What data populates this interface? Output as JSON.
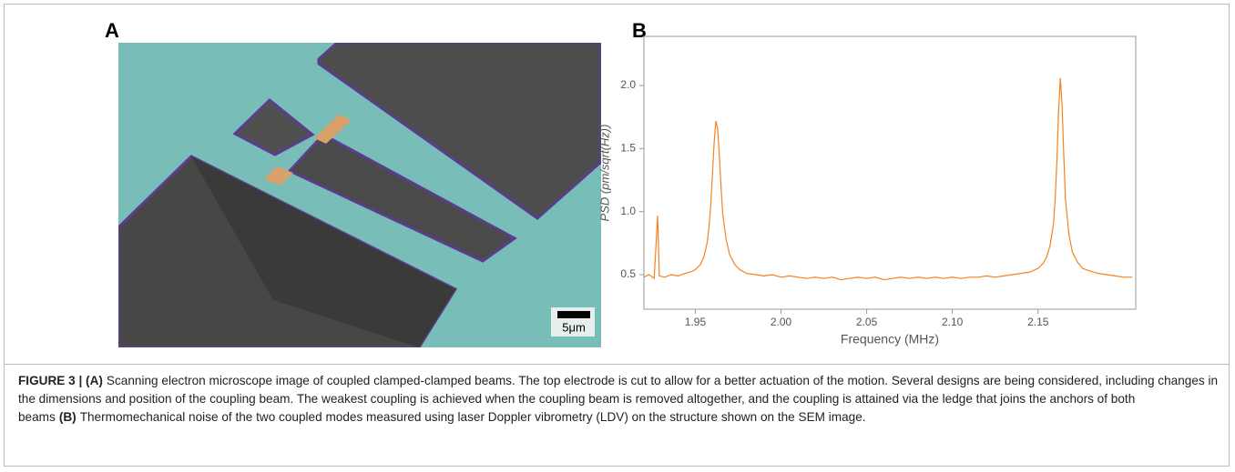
{
  "panel_labels": [
    "A",
    "B"
  ],
  "scale_bar": "5μm",
  "chart_data": {
    "type": "line",
    "xlabel": "Frequency (MHz)",
    "ylabel": "PSD (pm/sqrt(Hz))",
    "xlim": [
      1.92,
      2.207
    ],
    "ylim": [
      0.226,
      2.39
    ],
    "xticks": [
      1.95,
      {
        "value": 2,
        "label": "2.00"
      },
      2.05,
      {
        "value": 2.1,
        "label": "2.10"
      },
      2.15
    ],
    "yticks": [
      0.5,
      {
        "value": 1,
        "label": "1.0"
      },
      1.5,
      {
        "value": 2,
        "label": "2.0"
      }
    ],
    "x": [
      1.92,
      1.923,
      1.926,
      1.928,
      1.929,
      1.932,
      1.936,
      1.94,
      1.944,
      1.947,
      1.95,
      1.953,
      1.955,
      1.957,
      1.958,
      1.959,
      1.96,
      1.961,
      1.962,
      1.963,
      1.964,
      1.965,
      1.966,
      1.968,
      1.97,
      1.973,
      1.976,
      1.98,
      1.985,
      1.99,
      1.995,
      2.0,
      2.005,
      2.01,
      2.015,
      2.02,
      2.025,
      2.03,
      2.035,
      2.04,
      2.045,
      2.05,
      2.055,
      2.06,
      2.065,
      2.07,
      2.075,
      2.08,
      2.085,
      2.09,
      2.095,
      2.1,
      2.105,
      2.11,
      2.115,
      2.12,
      2.125,
      2.13,
      2.135,
      2.14,
      2.145,
      2.15,
      2.153,
      2.155,
      2.157,
      2.159,
      2.16,
      2.161,
      2.162,
      2.163,
      2.164,
      2.165,
      2.166,
      2.168,
      2.17,
      2.173,
      2.176,
      2.18,
      2.185,
      2.19,
      2.195,
      2.2,
      2.205
    ],
    "series": [
      {
        "color": "#f5821f",
        "values": [
          0.48,
          0.5,
          0.47,
          0.97,
          0.49,
          0.48,
          0.5,
          0.49,
          0.51,
          0.52,
          0.54,
          0.58,
          0.64,
          0.76,
          0.88,
          1.05,
          1.3,
          1.55,
          1.72,
          1.66,
          1.45,
          1.2,
          0.98,
          0.78,
          0.66,
          0.58,
          0.54,
          0.51,
          0.5,
          0.49,
          0.5,
          0.48,
          0.49,
          0.48,
          0.47,
          0.48,
          0.47,
          0.48,
          0.46,
          0.47,
          0.48,
          0.47,
          0.48,
          0.46,
          0.47,
          0.48,
          0.47,
          0.48,
          0.47,
          0.48,
          0.47,
          0.48,
          0.47,
          0.48,
          0.48,
          0.49,
          0.48,
          0.49,
          0.5,
          0.51,
          0.52,
          0.55,
          0.59,
          0.64,
          0.73,
          0.9,
          1.1,
          1.4,
          1.8,
          2.06,
          1.85,
          1.45,
          1.1,
          0.82,
          0.68,
          0.6,
          0.55,
          0.53,
          0.51,
          0.5,
          0.49,
          0.48,
          0.48
        ]
      }
    ]
  },
  "caption": {
    "label": "FIGURE 3 | (A)",
    "a_text": "Scanning electron microscope image of coupled clamped-clamped beams. The top electrode is cut to allow for a better actuation of the motion. Several designs are being considered, including changes in the dimensions and position of the coupling beam. The weakest coupling is achieved when the coupling beam is removed altogether, and the coupling is attained via the ledge that joins the anchors of both beams",
    "b_label": "(B)",
    "b_text": "Thermomechanical noise of the two coupled modes measured using laser Doppler vibrometry (LDV) on the structure shown on the SEM image."
  }
}
